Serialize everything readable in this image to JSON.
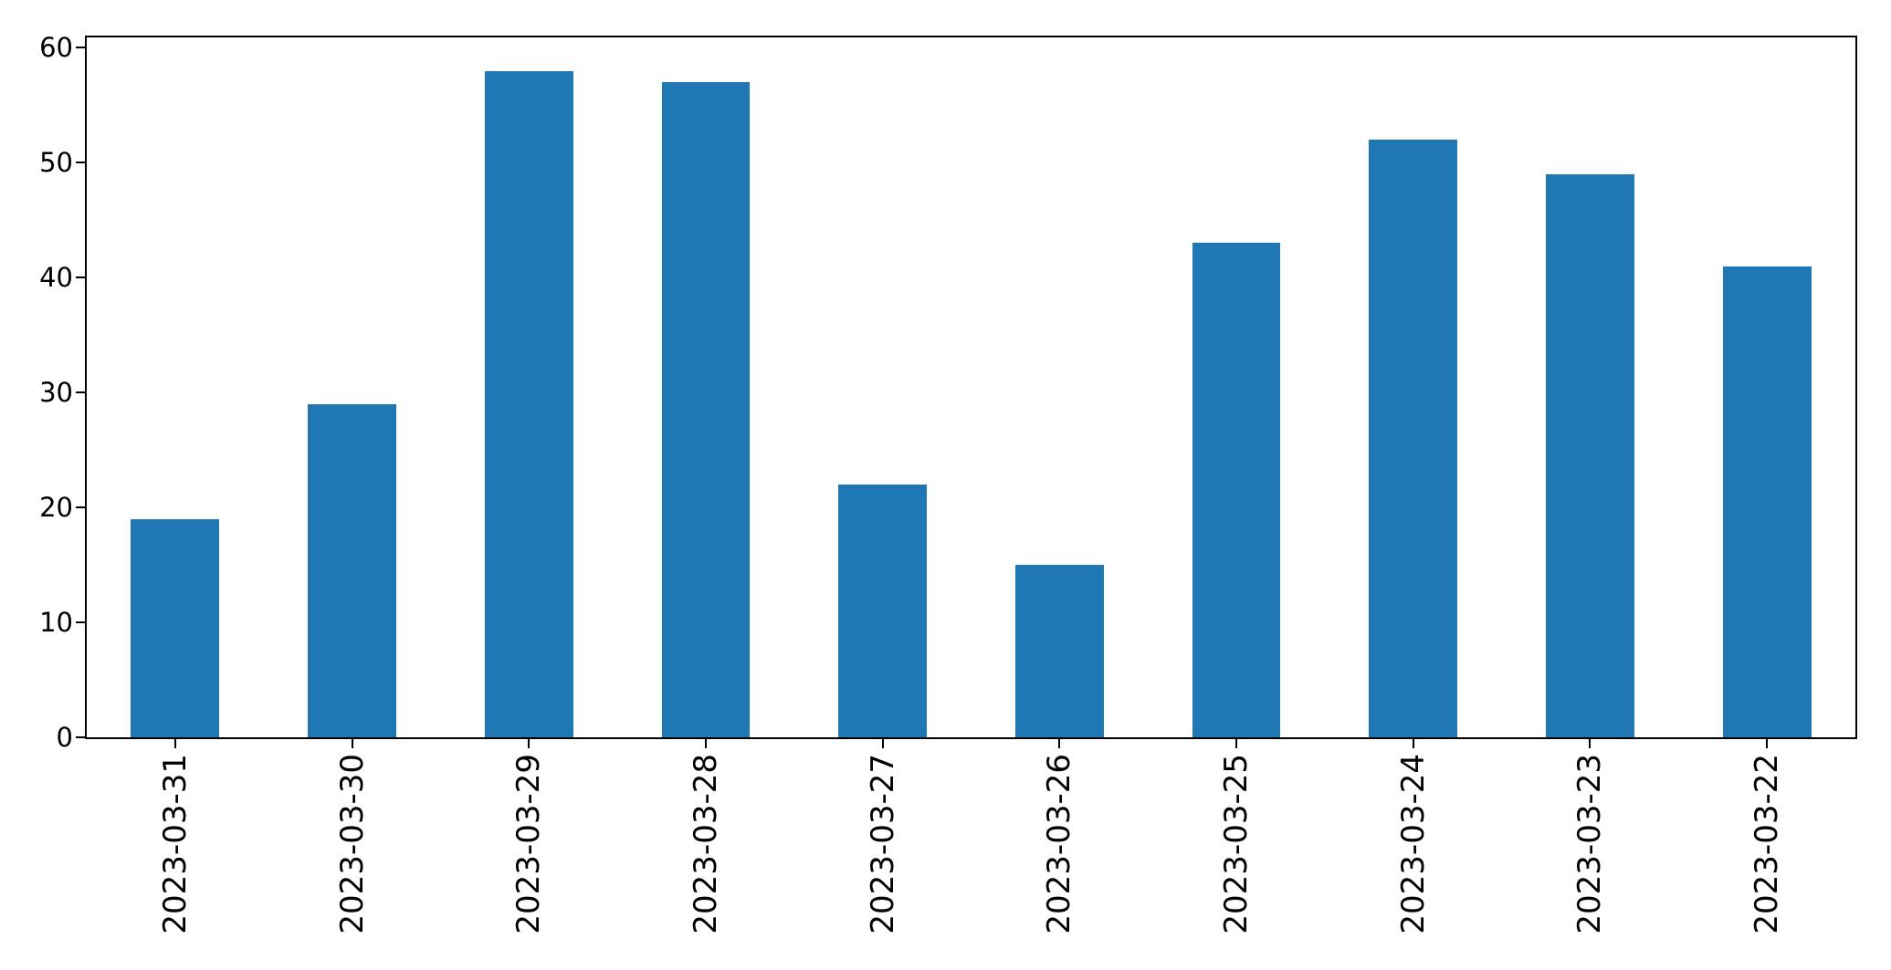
{
  "figure": {
    "background_color": "#ffffff",
    "axis_color": "#000000",
    "title": ""
  },
  "chart_data": {
    "type": "bar",
    "title": "",
    "xlabel": "",
    "ylabel": "",
    "categories": [
      "2023-03-31",
      "2023-03-30",
      "2023-03-29",
      "2023-03-28",
      "2023-03-27",
      "2023-03-26",
      "2023-03-25",
      "2023-03-24",
      "2023-03-23",
      "2023-03-22"
    ],
    "values": [
      19,
      29,
      58,
      57,
      22,
      15,
      43,
      52,
      49,
      41
    ],
    "bar_color": "#1f77b4",
    "ylim": [
      0,
      60.9
    ],
    "yticks": [
      0,
      10,
      20,
      30,
      40,
      50,
      60
    ],
    "x_tick_rotation_deg": 90,
    "bar_width_fraction": 0.5,
    "grid": false,
    "legend": "none"
  }
}
